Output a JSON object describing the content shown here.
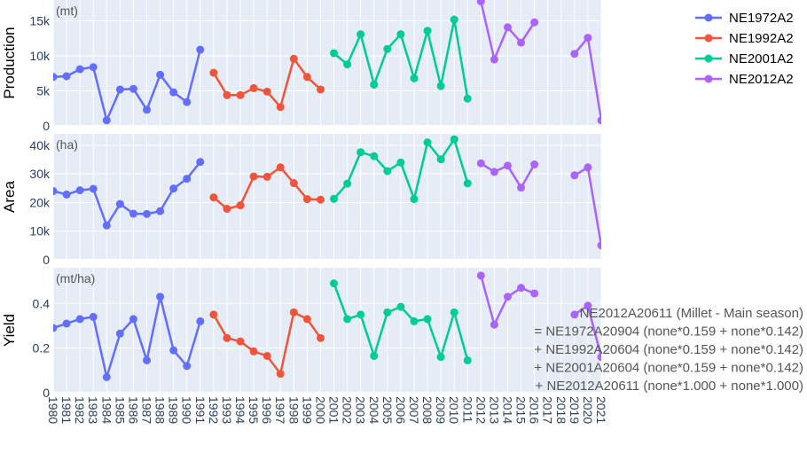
{
  "chart_data": {
    "type": "line",
    "x": [
      1980,
      1981,
      1982,
      1983,
      1984,
      1985,
      1986,
      1987,
      1988,
      1989,
      1990,
      1991,
      1992,
      1993,
      1994,
      1995,
      1996,
      1997,
      1998,
      1999,
      2000,
      2001,
      2002,
      2003,
      2004,
      2005,
      2006,
      2007,
      2008,
      2009,
      2010,
      2011,
      2012,
      2013,
      2014,
      2015,
      2016,
      2017,
      2018,
      2019,
      2020,
      2021
    ],
    "series": [
      {
        "name": "NE1972A2",
        "color": "#636efa",
        "x_range": [
          1980,
          1991
        ]
      },
      {
        "name": "NE1992A2",
        "color": "#ef553b",
        "x_range": [
          1992,
          2000
        ]
      },
      {
        "name": "NE2001A2",
        "color": "#00cc96",
        "x_range": [
          2001,
          2011
        ]
      },
      {
        "name": "NE2012A2",
        "color": "#ab63fa",
        "x_range": [
          2012,
          2021
        ]
      }
    ],
    "panels": [
      {
        "ylabel": "Production",
        "unit": "(mt)",
        "ylim": [
          0,
          18000
        ],
        "yticks": [
          0,
          5000,
          10000,
          15000
        ],
        "ytick_labels": [
          "0",
          "5k",
          "10k",
          "15k"
        ],
        "values": [
          7000,
          7100,
          8100,
          8400,
          800,
          5200,
          5300,
          2300,
          7300,
          4800,
          3400,
          10900,
          7600,
          4400,
          4400,
          5400,
          4900,
          2700,
          9600,
          7000,
          5200,
          10400,
          8800,
          13100,
          5900,
          11000,
          13100,
          6800,
          13600,
          5700,
          15200,
          3900,
          17800,
          9500,
          14100,
          11900,
          14800,
          null,
          null,
          10300,
          12600,
          800
        ]
      },
      {
        "ylabel": "Area",
        "unit": "(ha)",
        "ylim": [
          0,
          44000
        ],
        "yticks": [
          0,
          10000,
          20000,
          30000,
          40000
        ],
        "ytick_labels": [
          "0",
          "10k",
          "20k",
          "30k",
          "40k"
        ],
        "values": [
          24000,
          22800,
          24300,
          24800,
          12000,
          19500,
          16100,
          16000,
          17000,
          24900,
          28300,
          34200,
          21800,
          17800,
          19000,
          29100,
          29000,
          32300,
          26800,
          21200,
          21000,
          21300,
          26600,
          37600,
          36200,
          31000,
          34000,
          21200,
          41000,
          35100,
          42100,
          26700,
          33700,
          30700,
          32900,
          25200,
          33300,
          null,
          null,
          29500,
          32300,
          5000
        ]
      },
      {
        "ylabel": "Yield",
        "unit": "(mt/ha)",
        "ylim": [
          0,
          0.56
        ],
        "yticks": [
          0,
          0.2,
          0.4
        ],
        "ytick_labels": [
          "0",
          "0.2",
          "0.4"
        ],
        "values": [
          0.29,
          0.31,
          0.33,
          0.34,
          0.07,
          0.265,
          0.33,
          0.145,
          0.43,
          0.19,
          0.12,
          0.32,
          0.35,
          0.245,
          0.23,
          0.185,
          0.165,
          0.085,
          0.36,
          0.33,
          0.245,
          0.49,
          0.33,
          0.35,
          0.165,
          0.36,
          0.385,
          0.32,
          0.33,
          0.16,
          0.36,
          0.145,
          0.525,
          0.305,
          0.43,
          0.47,
          0.445,
          null,
          null,
          0.35,
          0.39,
          0.16
        ]
      }
    ],
    "legend_position": "top-right",
    "grid": true,
    "annotation": [
      "NE2012A20611 (Millet - Main season)",
      "= NE1972A20904 (none*0.159 + none*0.142)",
      "+ NE1992A20604 (none*0.159 + none*0.142)",
      "+ NE2001A20604 (none*0.159 + none*0.142)",
      "+ NE2012A20611 (none*1.000 + none*1.000)"
    ]
  }
}
